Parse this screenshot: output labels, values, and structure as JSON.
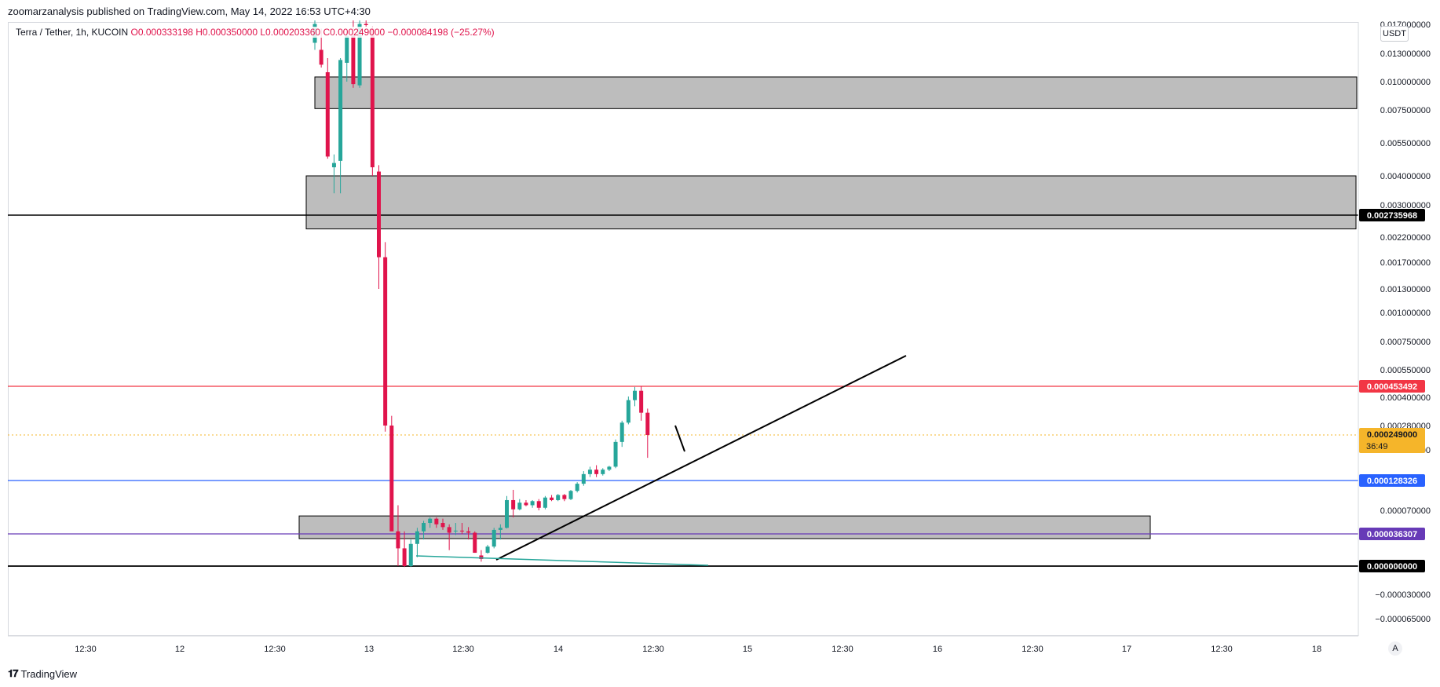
{
  "header": {
    "published_by": "zoomarzanalysis published on TradingView.com, May 14, 2022 16:53 UTC+4:30"
  },
  "legend": {
    "symbol": "Terra / Tether, 1h, KUCOIN",
    "open": "O0.000333198",
    "high": "H0.000350000",
    "low": "L0.000203360",
    "close": "C0.000249000",
    "change": "−0.000084198 (−25.27%)"
  },
  "currency_button": "USDT",
  "scale_mode_button": "A",
  "brand": "TradingView",
  "colors": {
    "up": "#26a69a",
    "down": "#e0144c",
    "zone": "#b2b2b2",
    "red_line": "#f23645",
    "blue_line": "#2962ff",
    "purple_line": "#673ab7",
    "current_price": "#f5b52a"
  },
  "chart_data": {
    "type": "candlestick",
    "x_ticks": [
      "12:30",
      "12",
      "12:30",
      "13",
      "12:30",
      "14",
      "12:30",
      "15",
      "12:30",
      "16",
      "12:30",
      "17",
      "12:30",
      "18"
    ],
    "y_ticks": [
      "0.017000000",
      "0.013000000",
      "0.010000000",
      "0.007500000",
      "0.005500000",
      "0.004000000",
      "0.003000000",
      "0.002200000",
      "0.001700000",
      "0.001300000",
      "0.001000000",
      "0.000750000",
      "0.000550000",
      "0.000400000",
      "0.000280000",
      "0.000200000",
      "0.000070000",
      "−0.000030000",
      "−0.000065000"
    ],
    "price_labels": [
      {
        "text": "0.002735968",
        "color": "#000000"
      },
      {
        "text": "0.000453492",
        "color": "#f23645"
      },
      {
        "text": "0.000249000",
        "subtext": "36:49",
        "color": "#f5b52a"
      },
      {
        "text": "0.000128326",
        "color": "#2962ff"
      },
      {
        "text": "0.000036307",
        "color": "#673ab7"
      },
      {
        "text": "0.000000000",
        "color": "#000000"
      }
    ],
    "candles": [
      {
        "o": 0.0145,
        "h": 0.0178,
        "l": 0.0135,
        "c": 0.0172
      },
      {
        "o": 0.0135,
        "h": 0.0165,
        "l": 0.0115,
        "c": 0.0118
      },
      {
        "o": 0.011,
        "h": 0.0125,
        "l": 0.0048,
        "c": 0.0049
      },
      {
        "o": 0.0044,
        "h": 0.005,
        "l": 0.0034,
        "c": 0.0046
      },
      {
        "o": 0.0047,
        "h": 0.0125,
        "l": 0.0034,
        "c": 0.0123
      },
      {
        "o": 0.012,
        "h": 0.016,
        "l": 0.01,
        "c": 0.0155
      },
      {
        "o": 0.0155,
        "h": 0.0178,
        "l": 0.0095,
        "c": 0.0098
      },
      {
        "o": 0.0097,
        "h": 0.0178,
        "l": 0.0095,
        "c": 0.0172
      },
      {
        "o": 0.0172,
        "h": 0.0178,
        "l": 0.0168,
        "c": 0.017
      },
      {
        "o": 0.0165,
        "h": 0.0168,
        "l": 0.004,
        "c": 0.0044
      },
      {
        "o": 0.0042,
        "h": 0.0045,
        "l": 0.0013,
        "c": 0.0018
      },
      {
        "o": 0.0018,
        "h": 0.0021,
        "l": 0.00026,
        "c": 0.00028
      },
      {
        "o": 0.00028,
        "h": 0.00032,
        "l": 6e-05,
        "c": 4e-05
      },
      {
        "o": 4e-05,
        "h": 8e-05,
        "l": 0.0,
        "c": 2e-05
      },
      {
        "o": 2e-05,
        "h": 4e-05,
        "l": -1e-06,
        "c": 0.0
      },
      {
        "o": 0.0,
        "h": 3e-05,
        "l": -1e-06,
        "c": 2.5e-05
      },
      {
        "o": 2.5e-05,
        "h": 4.5e-05,
        "l": 1e-05,
        "c": 4e-05
      },
      {
        "o": 4e-05,
        "h": 5.5e-05,
        "l": 3e-05,
        "c": 5.2e-05
      },
      {
        "o": 5.2e-05,
        "h": 6e-05,
        "l": 4.5e-05,
        "c": 5.8e-05
      },
      {
        "o": 5.8e-05,
        "h": 6e-05,
        "l": 4.5e-05,
        "c": 5e-05
      },
      {
        "o": 5.2e-05,
        "h": 5.8e-05,
        "l": 4.2e-05,
        "c": 4.6e-05
      },
      {
        "o": 4.6e-05,
        "h": 5e-05,
        "l": 1.8e-05,
        "c": 3.8e-05
      },
      {
        "o": 4e-05,
        "h": 5.2e-05,
        "l": 3.5e-05,
        "c": 4.1e-05
      },
      {
        "o": 4.1e-05,
        "h": 5.2e-05,
        "l": 3.6e-05,
        "c": 4e-05
      },
      {
        "o": 4e-05,
        "h": 4.6e-05,
        "l": 3e-05,
        "c": 3.8e-05
      },
      {
        "o": 3.8e-05,
        "h": 4e-05,
        "l": 1.5e-05,
        "c": 1.5e-05
      },
      {
        "o": 1.2e-05,
        "h": 1.8e-05,
        "l": 5e-06,
        "c": 8e-06
      },
      {
        "o": 1.5e-05,
        "h": 2.4e-05,
        "l": 1.4e-05,
        "c": 2.2e-05
      },
      {
        "o": 2.2e-05,
        "h": 4.5e-05,
        "l": 2e-05,
        "c": 4.2e-05
      },
      {
        "o": 4.2e-05,
        "h": 5e-05,
        "l": 3e-05,
        "c": 4.5e-05
      },
      {
        "o": 4.5e-05,
        "h": 9.8e-05,
        "l": 4.4e-05,
        "c": 9e-05
      },
      {
        "o": 9e-05,
        "h": 0.00011,
        "l": 6e-05,
        "c": 7.2e-05
      },
      {
        "o": 7.2e-05,
        "h": 9.2e-05,
        "l": 7e-05,
        "c": 8.5e-05
      },
      {
        "o": 8.5e-05,
        "h": 9e-05,
        "l": 7.8e-05,
        "c": 8e-05
      },
      {
        "o": 8e-05,
        "h": 9e-05,
        "l": 7.5e-05,
        "c": 8.8e-05
      },
      {
        "o": 8.8e-05,
        "h": 9.2e-05,
        "l": 7e-05,
        "c": 7.5e-05
      },
      {
        "o": 7.5e-05,
        "h": 9.8e-05,
        "l": 7.2e-05,
        "c": 9.5e-05
      },
      {
        "o": 9.5e-05,
        "h": 0.0001,
        "l": 8.8e-05,
        "c": 9e-05
      },
      {
        "o": 9e-05,
        "h": 0.000102,
        "l": 8.8e-05,
        "c": 0.0001
      },
      {
        "o": 0.0001,
        "h": 0.000102,
        "l": 8.8e-05,
        "c": 9.2e-05
      },
      {
        "o": 9.2e-05,
        "h": 0.00011,
        "l": 9e-05,
        "c": 0.000108
      },
      {
        "o": 0.000108,
        "h": 0.000125,
        "l": 0.000105,
        "c": 0.000122
      },
      {
        "o": 0.000122,
        "h": 0.00016,
        "l": 0.000118,
        "c": 0.00015
      },
      {
        "o": 0.00015,
        "h": 0.000175,
        "l": 0.00014,
        "c": 0.000165
      },
      {
        "o": 0.000165,
        "h": 0.00018,
        "l": 0.00014,
        "c": 0.00015
      },
      {
        "o": 0.00015,
        "h": 0.00017,
        "l": 0.000145,
        "c": 0.000165
      },
      {
        "o": 0.000165,
        "h": 0.000178,
        "l": 0.00016,
        "c": 0.000175
      },
      {
        "o": 0.000175,
        "h": 0.00024,
        "l": 0.00017,
        "c": 0.000235
      },
      {
        "o": 0.000235,
        "h": 0.0003,
        "l": 0.000225,
        "c": 0.000292
      },
      {
        "o": 0.000292,
        "h": 0.0004,
        "l": 0.000285,
        "c": 0.000385
      },
      {
        "o": 0.000385,
        "h": 0.00045,
        "l": 0.00036,
        "c": 0.00043
      },
      {
        "o": 0.00043,
        "h": 0.000455,
        "l": 0.0003,
        "c": 0.000333
      },
      {
        "o": 0.000333,
        "h": 0.00035,
        "l": 0.000203,
        "c": 0.000249
      }
    ]
  }
}
